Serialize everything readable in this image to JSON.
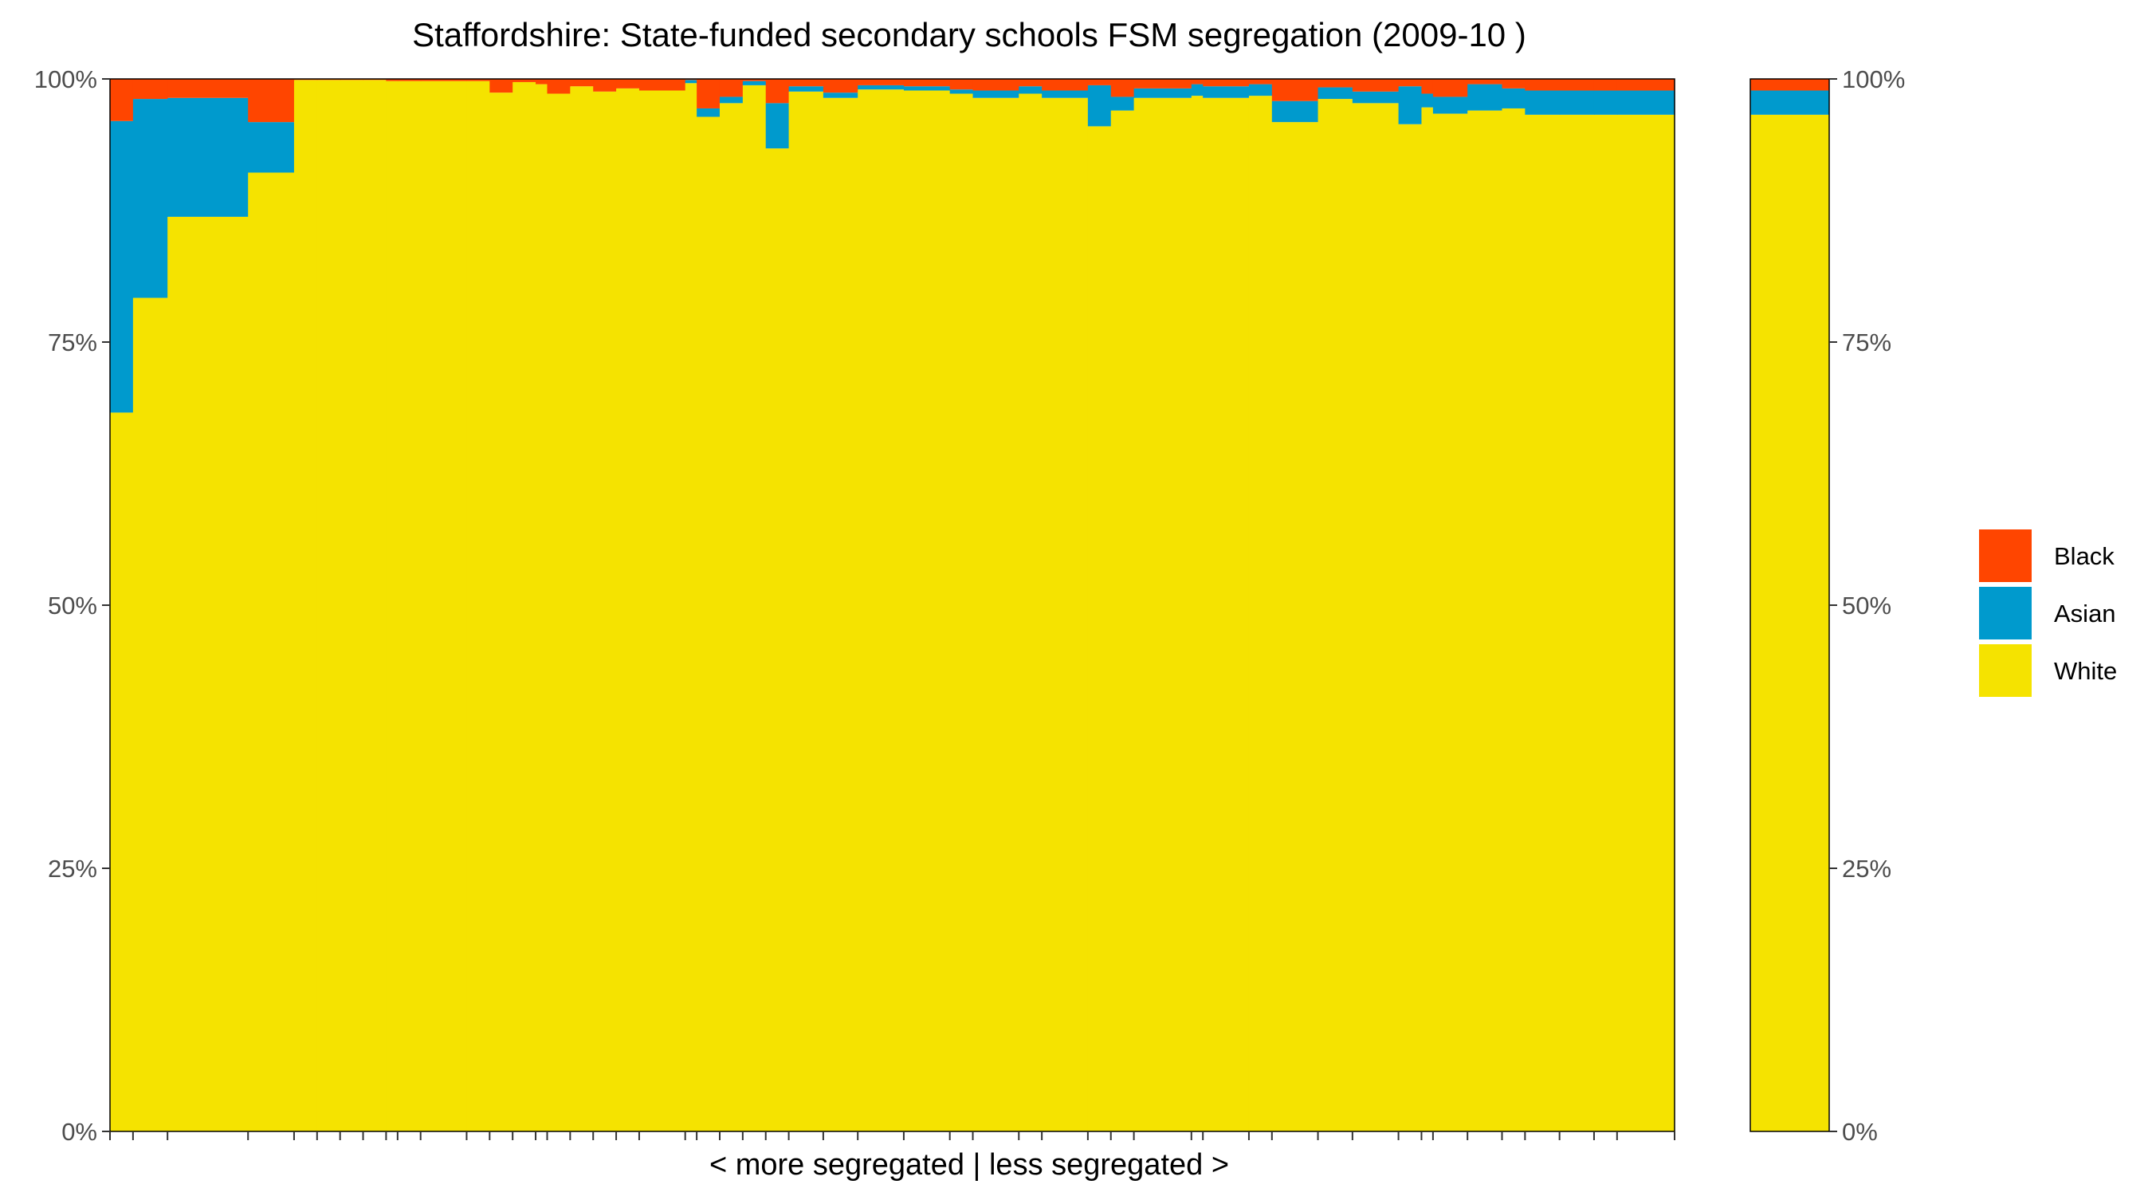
{
  "chart_data": {
    "type": "bar",
    "stacked": true,
    "percent_stacked": true,
    "title": "Staffordshire: State-funded secondary schools FSM segregation (2009-10 )",
    "xlabel": "< more segregated | less segregated >",
    "ylabel": "",
    "ylim": [
      0,
      100
    ],
    "yticks": [
      0,
      25,
      50,
      75,
      100
    ],
    "ytick_labels": [
      "0%",
      "25%",
      "50%",
      "75%",
      "100%"
    ],
    "legend": {
      "position": "right",
      "entries": [
        "Black",
        "Asian",
        "White"
      ]
    },
    "colors": {
      "Black": "#ff4500",
      "Asian": "#009acd",
      "White": "#f5e300"
    },
    "school_weights": [
      2,
      3,
      7,
      4,
      2,
      2,
      2,
      2,
      1,
      2,
      4,
      2,
      2,
      2,
      1,
      2,
      2,
      2,
      2,
      4,
      1,
      2,
      2,
      2,
      2,
      3,
      3,
      4,
      4,
      2,
      4,
      2,
      4,
      2,
      2,
      5,
      1,
      4,
      2,
      4,
      3,
      4,
      2,
      1,
      3,
      3,
      2,
      3,
      3,
      2,
      5
    ],
    "schools": {
      "White": [
        68.3,
        79.2,
        86.9,
        91.1,
        99.9,
        99.9,
        99.9,
        99.9,
        99.8,
        99.8,
        99.8,
        99.8,
        98.7,
        99.7,
        99.5,
        98.6,
        99.3,
        98.8,
        99.1,
        98.9,
        99.6,
        96.4,
        97.7,
        99.4,
        93.4,
        98.8,
        98.2,
        99.0,
        98.9,
        98.6,
        98.2,
        98.6,
        98.2,
        95.5,
        97.0,
        98.2,
        98.4,
        98.2,
        98.4,
        95.9,
        98.1,
        97.7,
        95.7,
        97.3,
        96.7,
        97.0,
        97.2,
        96.6,
        96.6,
        96.6,
        96.6
      ],
      "Asian": [
        27.7,
        18.9,
        11.3,
        4.8,
        0.0,
        0.0,
        0.0,
        0.0,
        0.0,
        0.0,
        0.0,
        0.0,
        0.0,
        0.0,
        0.0,
        0.0,
        0.0,
        0.0,
        0.0,
        0.0,
        0.3,
        0.8,
        0.6,
        0.4,
        4.3,
        0.5,
        0.5,
        0.4,
        0.4,
        0.4,
        0.7,
        0.7,
        0.7,
        3.9,
        1.3,
        0.9,
        1.1,
        1.1,
        1.1,
        2.0,
        1.1,
        1.1,
        3.6,
        1.3,
        1.6,
        2.5,
        1.9,
        2.3,
        2.3,
        2.3,
        2.3
      ],
      "Black": [
        4.0,
        1.9,
        1.8,
        4.1,
        0.1,
        0.1,
        0.1,
        0.1,
        0.2,
        0.2,
        0.2,
        0.2,
        1.3,
        0.3,
        0.5,
        1.4,
        0.7,
        1.2,
        0.9,
        1.1,
        0.1,
        2.8,
        1.7,
        0.2,
        2.3,
        0.7,
        1.3,
        0.6,
        0.7,
        1.0,
        1.1,
        0.7,
        1.1,
        0.6,
        1.7,
        0.9,
        0.5,
        0.7,
        0.5,
        2.1,
        0.8,
        1.2,
        0.7,
        1.4,
        1.7,
        0.5,
        0.9,
        1.1,
        1.1,
        1.1,
        1.1
      ]
    },
    "overall": {
      "White": 96.6,
      "Asian": 2.3,
      "Black": 1.1
    }
  }
}
